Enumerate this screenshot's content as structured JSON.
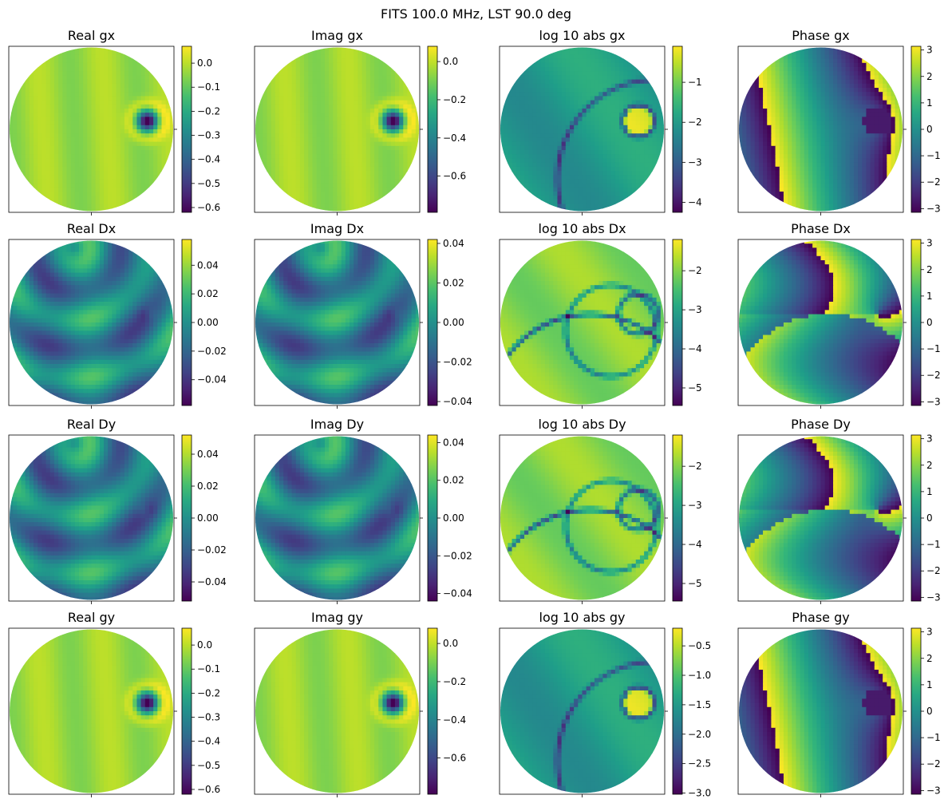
{
  "figure": {
    "title": "FITS 100.0 MHz, LST 90.0 deg"
  },
  "chart_data": [
    {
      "type": "heatmap",
      "title": "Real gx",
      "pattern": "gain",
      "colorbar": {
        "vmin": -0.62,
        "vmax": 0.07,
        "ticks": [
          0.0,
          -0.1,
          -0.2,
          -0.3,
          -0.4,
          -0.5,
          -0.6
        ],
        "tick_labels": [
          "0.0",
          "−0.1",
          "−0.2",
          "−0.3",
          "−0.4",
          "−0.5",
          "−0.6"
        ]
      }
    },
    {
      "type": "heatmap",
      "title": "Imag gx",
      "pattern": "gain",
      "colorbar": {
        "vmin": -0.79,
        "vmax": 0.08,
        "ticks": [
          0.0,
          -0.2,
          -0.4,
          -0.6
        ],
        "tick_labels": [
          "0.0",
          "−0.2",
          "−0.4",
          "−0.6"
        ]
      }
    },
    {
      "type": "heatmap",
      "title": "log 10 abs gx",
      "pattern": "loggain",
      "colorbar": {
        "vmin": -4.25,
        "vmax": -0.1,
        "ticks": [
          -1,
          -2,
          -3,
          -4
        ],
        "tick_labels": [
          "−1",
          "−2",
          "−3",
          "−4"
        ]
      }
    },
    {
      "type": "heatmap",
      "title": "Phase gx",
      "pattern": "phase",
      "colorbar": {
        "vmin": -3.14,
        "vmax": 3.14,
        "ticks": [
          3,
          2,
          1,
          0,
          -1,
          -2,
          -3
        ],
        "tick_labels": [
          "3",
          "2",
          "1",
          "0",
          "−1",
          "−2",
          "−3"
        ]
      }
    },
    {
      "type": "heatmap",
      "title": "Real Dx",
      "pattern": "leak",
      "colorbar": {
        "vmin": -0.058,
        "vmax": 0.058,
        "ticks": [
          0.04,
          0.02,
          0.0,
          -0.02,
          -0.04
        ],
        "tick_labels": [
          "0.04",
          "0.02",
          "0.00",
          "−0.02",
          "−0.04"
        ]
      }
    },
    {
      "type": "heatmap",
      "title": "Imag Dx",
      "pattern": "leak",
      "colorbar": {
        "vmin": -0.042,
        "vmax": 0.042,
        "ticks": [
          0.04,
          0.02,
          0.0,
          -0.02,
          -0.04
        ],
        "tick_labels": [
          "0.04",
          "0.02",
          "0.00",
          "−0.02",
          "−0.04"
        ]
      }
    },
    {
      "type": "heatmap",
      "title": "log 10 abs Dx",
      "pattern": "logleak",
      "colorbar": {
        "vmin": -5.45,
        "vmax": -1.2,
        "ticks": [
          -2,
          -3,
          -4,
          -5
        ],
        "tick_labels": [
          "−2",
          "−3",
          "−4",
          "−5"
        ]
      }
    },
    {
      "type": "heatmap",
      "title": "Phase Dx",
      "pattern": "phaseD",
      "colorbar": {
        "vmin": -3.14,
        "vmax": 3.14,
        "ticks": [
          3,
          2,
          1,
          0,
          -1,
          -2,
          -3
        ],
        "tick_labels": [
          "3",
          "2",
          "1",
          "0",
          "−1",
          "−2",
          "−3"
        ]
      }
    },
    {
      "type": "heatmap",
      "title": "Real Dy",
      "pattern": "leak2",
      "colorbar": {
        "vmin": -0.052,
        "vmax": 0.052,
        "ticks": [
          0.04,
          0.02,
          0.0,
          -0.02,
          -0.04
        ],
        "tick_labels": [
          "0.04",
          "0.02",
          "0.00",
          "−0.02",
          "−0.04"
        ]
      }
    },
    {
      "type": "heatmap",
      "title": "Imag Dy",
      "pattern": "leak2",
      "colorbar": {
        "vmin": -0.044,
        "vmax": 0.044,
        "ticks": [
          0.04,
          0.02,
          0.0,
          -0.02,
          -0.04
        ],
        "tick_labels": [
          "0.04",
          "0.02",
          "0.00",
          "−0.02",
          "−0.04"
        ]
      }
    },
    {
      "type": "heatmap",
      "title": "log 10 abs Dy",
      "pattern": "logleak",
      "colorbar": {
        "vmin": -5.45,
        "vmax": -1.2,
        "ticks": [
          -2,
          -3,
          -4,
          -5
        ],
        "tick_labels": [
          "−2",
          "−3",
          "−4",
          "−5"
        ]
      }
    },
    {
      "type": "heatmap",
      "title": "Phase Dy",
      "pattern": "phaseD",
      "colorbar": {
        "vmin": -3.14,
        "vmax": 3.14,
        "ticks": [
          3,
          2,
          1,
          0,
          -1,
          -2,
          -3
        ],
        "tick_labels": [
          "3",
          "2",
          "1",
          "0",
          "−1",
          "−2",
          "−3"
        ]
      }
    },
    {
      "type": "heatmap",
      "title": "Real gy",
      "pattern": "gain",
      "colorbar": {
        "vmin": -0.62,
        "vmax": 0.07,
        "ticks": [
          0.0,
          -0.1,
          -0.2,
          -0.3,
          -0.4,
          -0.5,
          -0.6
        ],
        "tick_labels": [
          "0.0",
          "−0.1",
          "−0.2",
          "−0.3",
          "−0.4",
          "−0.5",
          "−0.6"
        ]
      }
    },
    {
      "type": "heatmap",
      "title": "Imag gy",
      "pattern": "gain",
      "colorbar": {
        "vmin": -0.79,
        "vmax": 0.08,
        "ticks": [
          0.0,
          -0.2,
          -0.4,
          -0.6
        ],
        "tick_labels": [
          "0.0",
          "−0.2",
          "−0.4",
          "−0.6"
        ]
      }
    },
    {
      "type": "heatmap",
      "title": "log 10 abs gy",
      "pattern": "loggain",
      "colorbar": {
        "vmin": -3.02,
        "vmax": -0.2,
        "ticks": [
          -0.5,
          -1.0,
          -1.5,
          -2.0,
          -2.5,
          -3.0
        ],
        "tick_labels": [
          "−0.5",
          "−1.0",
          "−1.5",
          "−2.0",
          "−2.5",
          "−3.0"
        ]
      }
    },
    {
      "type": "heatmap",
      "title": "Phase gy",
      "pattern": "phase",
      "colorbar": {
        "vmin": -3.14,
        "vmax": 3.14,
        "ticks": [
          3,
          2,
          1,
          0,
          -1,
          -2,
          -3
        ],
        "tick_labels": [
          "3",
          "2",
          "1",
          "0",
          "−1",
          "−2",
          "−3"
        ]
      }
    }
  ]
}
